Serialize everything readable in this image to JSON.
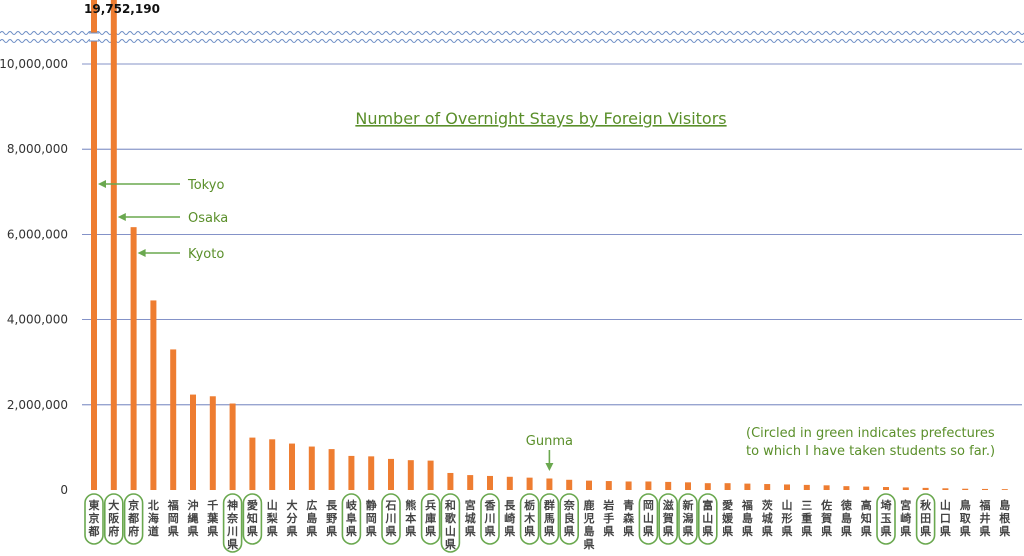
{
  "chart_data": {
    "type": "bar",
    "title": "Number of Overnight Stays by Foreign Visitors",
    "xlabel": "",
    "ylabel": "",
    "ylim": [
      0,
      10500000
    ],
    "yticks": [
      "0",
      "2,000,000",
      "4,000,000",
      "6,000,000",
      "8,000,000",
      "10,000,000"
    ],
    "ytick_values": [
      0,
      2000000,
      4000000,
      6000000,
      8000000,
      10000000
    ],
    "axis_break": true,
    "max_label": "19,752,190",
    "grid": true,
    "bar_color": "#ee7d31",
    "highlight_color": "#6aa84f",
    "categories": [
      "東京都",
      "大阪府",
      "京都府",
      "北海道",
      "福岡県",
      "沖縄県",
      "千葉県",
      "神奈川県",
      "愛知県",
      "山梨県",
      "大分県",
      "広島県",
      "長野県",
      "岐阜県",
      "静岡県",
      "石川県",
      "熊本県",
      "兵庫県",
      "和歌山県",
      "宮城県",
      "香川県",
      "長崎県",
      "栃木県",
      "群馬県",
      "奈良県",
      "鹿児島県",
      "岩手県",
      "青森県",
      "岡山県",
      "滋賀県",
      "新潟県",
      "富山県",
      "愛媛県",
      "福島県",
      "茨城県",
      "山形県",
      "三重県",
      "佐賀県",
      "徳島県",
      "高知県",
      "埼玉県",
      "宮崎県",
      "秋田県",
      "山口県",
      "鳥取県",
      "福井県",
      "島根県"
    ],
    "values": [
      19752190,
      10280000,
      6170000,
      4450000,
      3300000,
      2240000,
      2200000,
      2030000,
      1230000,
      1190000,
      1090000,
      1020000,
      960000,
      800000,
      790000,
      730000,
      700000,
      690000,
      400000,
      350000,
      330000,
      310000,
      290000,
      270000,
      240000,
      220000,
      210000,
      200000,
      200000,
      190000,
      180000,
      160000,
      160000,
      150000,
      140000,
      130000,
      120000,
      110000,
      90000,
      80000,
      70000,
      60000,
      50000,
      40000,
      30000,
      25000,
      20000
    ],
    "circled": [
      "東京都",
      "大阪府",
      "京都府",
      "神奈川県",
      "愛知県",
      "岐阜県",
      "石川県",
      "兵庫県",
      "和歌山県",
      "香川県",
      "栃木県",
      "群馬県",
      "奈良県",
      "岡山県",
      "滋賀県",
      "新潟県",
      "富山県",
      "埼玉県",
      "秋田県"
    ],
    "annotations": [
      {
        "text": "Tokyo",
        "category": "東京都"
      },
      {
        "text": "Osaka",
        "category": "大阪府"
      },
      {
        "text": "Kyoto",
        "category": "京都府"
      },
      {
        "text": "Gunma",
        "category": "群馬県"
      }
    ],
    "note_lines": [
      "(Circled in green indicates prefectures",
      "to which I have taken students so far.)"
    ]
  }
}
